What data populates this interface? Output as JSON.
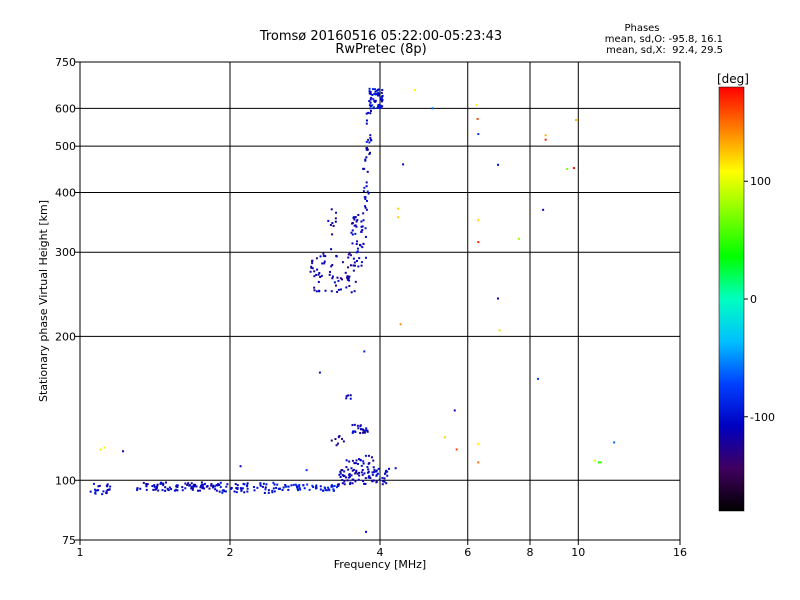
{
  "chart_data": {
    "type": "scatter",
    "title": "Tromsø 20160516 05:22:00-05:23:43",
    "subtitle": "RwPretec (8p)",
    "xlabel": "Frequency [MHz]",
    "ylabel": "Stationary phase Virtual Height [km]",
    "xscale": "log",
    "yscale": "log",
    "xlim": [
      1,
      16
    ],
    "ylim": [
      75,
      750
    ],
    "x_ticks": [
      1,
      2,
      4,
      6,
      8,
      10,
      16
    ],
    "y_ticks": [
      75,
      100,
      200,
      300,
      400,
      500,
      600,
      750
    ],
    "grid": true,
    "phase_stats": {
      "title": "Phases",
      "line_o": "mean, sd,O: -95.8, 16.1",
      "line_x": "mean, sd,X:  92.4, 29.5"
    },
    "colorbar": {
      "label": "[deg]",
      "range": [
        -180,
        180
      ],
      "ticks": [
        100,
        0,
        -100
      ],
      "colors": [
        "#ff0000",
        "#ff8000",
        "#ffff00",
        "#80ff00",
        "#00ff00",
        "#00ffc0",
        "#00c0ff",
        "#0040ff",
        "#0000c0",
        "#400060",
        "#000000"
      ]
    },
    "clusters": [
      {
        "x0": 1.05,
        "x1": 1.15,
        "y0": 93,
        "y1": 99,
        "n": 22,
        "phase": -105
      },
      {
        "x0": 1.3,
        "x1": 1.9,
        "y0": 95,
        "y1": 99,
        "n": 90,
        "phase": -110
      },
      {
        "x0": 1.9,
        "x1": 2.5,
        "y0": 94,
        "y1": 99,
        "n": 55,
        "phase": -100
      },
      {
        "x0": 2.5,
        "x1": 3.3,
        "y0": 95,
        "y1": 98,
        "n": 55,
        "phase": -95
      },
      {
        "x0": 3.3,
        "x1": 4.2,
        "y0": 98,
        "y1": 106,
        "n": 80,
        "phase": -110
      },
      {
        "x0": 3.4,
        "x1": 3.9,
        "y0": 105,
        "y1": 113,
        "n": 25,
        "phase": -110
      },
      {
        "x0": 3.5,
        "x1": 3.8,
        "y0": 124,
        "y1": 131,
        "n": 22,
        "phase": -110
      },
      {
        "x0": 3.2,
        "x1": 3.4,
        "y0": 118,
        "y1": 124,
        "n": 8,
        "phase": -115
      },
      {
        "x0": 3.4,
        "x1": 3.5,
        "y0": 147,
        "y1": 151,
        "n": 5,
        "phase": -115
      },
      {
        "x0": 2.9,
        "x1": 3.6,
        "y0": 247,
        "y1": 300,
        "n": 70,
        "phase": -115
      },
      {
        "x0": 3.5,
        "x1": 3.75,
        "y0": 280,
        "y1": 360,
        "n": 45,
        "phase": -110
      },
      {
        "x0": 3.1,
        "x1": 3.3,
        "y0": 300,
        "y1": 370,
        "n": 10,
        "phase": -115
      },
      {
        "x0": 3.7,
        "x1": 3.8,
        "y0": 360,
        "y1": 480,
        "n": 20,
        "phase": -105
      },
      {
        "x0": 3.75,
        "x1": 3.85,
        "y0": 480,
        "y1": 600,
        "n": 20,
        "phase": -105
      },
      {
        "x0": 3.8,
        "x1": 4.05,
        "y0": 600,
        "y1": 660,
        "n": 60,
        "phase": -100
      }
    ],
    "points": [
      {
        "x": 1.1,
        "y": 116,
        "phase": 100
      },
      {
        "x": 1.12,
        "y": 117,
        "phase": 110
      },
      {
        "x": 1.22,
        "y": 115,
        "phase": -120
      },
      {
        "x": 2.1,
        "y": 107,
        "phase": -110
      },
      {
        "x": 2.85,
        "y": 105,
        "phase": -80
      },
      {
        "x": 3.03,
        "y": 168,
        "phase": -100
      },
      {
        "x": 3.72,
        "y": 186,
        "phase": -90
      },
      {
        "x": 3.75,
        "y": 78,
        "phase": -110
      },
      {
        "x": 4.3,
        "y": 106,
        "phase": -100
      },
      {
        "x": 4.35,
        "y": 355,
        "phase": 120
      },
      {
        "x": 4.35,
        "y": 370,
        "phase": 120
      },
      {
        "x": 4.4,
        "y": 212,
        "phase": 140
      },
      {
        "x": 4.45,
        "y": 458,
        "phase": -110
      },
      {
        "x": 4.7,
        "y": 655,
        "phase": 110
      },
      {
        "x": 5.1,
        "y": 600,
        "phase": -60
      },
      {
        "x": 5.4,
        "y": 123,
        "phase": 120
      },
      {
        "x": 5.65,
        "y": 140,
        "phase": -110
      },
      {
        "x": 5.7,
        "y": 116,
        "phase": 160
      },
      {
        "x": 6.25,
        "y": 610,
        "phase": 110
      },
      {
        "x": 6.28,
        "y": 570,
        "phase": 160
      },
      {
        "x": 6.3,
        "y": 530,
        "phase": -80
      },
      {
        "x": 6.3,
        "y": 350,
        "phase": 120
      },
      {
        "x": 6.3,
        "y": 315,
        "phase": 170
      },
      {
        "x": 6.3,
        "y": 119,
        "phase": 110
      },
      {
        "x": 6.3,
        "y": 109,
        "phase": 150
      },
      {
        "x": 6.9,
        "y": 457,
        "phase": -100
      },
      {
        "x": 6.9,
        "y": 240,
        "phase": -120
      },
      {
        "x": 6.95,
        "y": 206,
        "phase": 120
      },
      {
        "x": 7.6,
        "y": 320,
        "phase": 80
      },
      {
        "x": 8.3,
        "y": 163,
        "phase": -80
      },
      {
        "x": 8.5,
        "y": 368,
        "phase": -110
      },
      {
        "x": 8.6,
        "y": 527,
        "phase": 130
      },
      {
        "x": 8.6,
        "y": 516,
        "phase": 170
      },
      {
        "x": 9.5,
        "y": 448,
        "phase": 70
      },
      {
        "x": 9.8,
        "y": 450,
        "phase": 180
      },
      {
        "x": 9.9,
        "y": 567,
        "phase": 130
      },
      {
        "x": 10.8,
        "y": 110,
        "phase": 100
      },
      {
        "x": 11.0,
        "y": 109,
        "phase": 40
      },
      {
        "x": 11.1,
        "y": 109,
        "phase": 60
      },
      {
        "x": 11.8,
        "y": 120,
        "phase": -60
      }
    ]
  }
}
